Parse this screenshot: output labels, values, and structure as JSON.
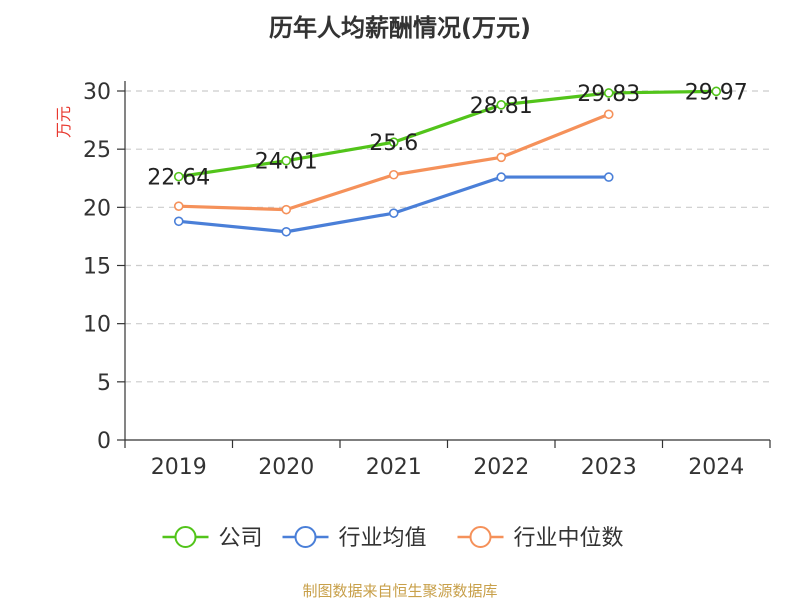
{
  "chart_data": {
    "type": "line",
    "title": "历年人均薪酬情况(万元)",
    "ylabel": "万元",
    "xlabel": "",
    "categories": [
      "2019",
      "2020",
      "2021",
      "2022",
      "2023",
      "2024"
    ],
    "ylim": [
      0,
      30
    ],
    "yticks": [
      0,
      5,
      10,
      15,
      20,
      25,
      30
    ],
    "grid": true,
    "legend_position": "bottom",
    "series": [
      {
        "name": "公司",
        "color": "#52c41a",
        "values": [
          22.64,
          24.01,
          25.6,
          28.81,
          29.83,
          29.97
        ],
        "labels": [
          "22.64",
          "24.01",
          "25.6",
          "28.81",
          "29.83",
          "29.97"
        ]
      },
      {
        "name": "行业均值",
        "color": "#4a7fd8",
        "values": [
          18.8,
          17.9,
          19.5,
          22.6,
          22.6,
          null
        ]
      },
      {
        "name": "行业中位数",
        "color": "#f5915a",
        "values": [
          20.1,
          19.8,
          22.8,
          24.3,
          28.0,
          null
        ]
      }
    ]
  },
  "ylabel_color": "#e8382f",
  "source": {
    "text": "制图数据来自恒生聚源数据库",
    "color": "#c8a04a"
  }
}
